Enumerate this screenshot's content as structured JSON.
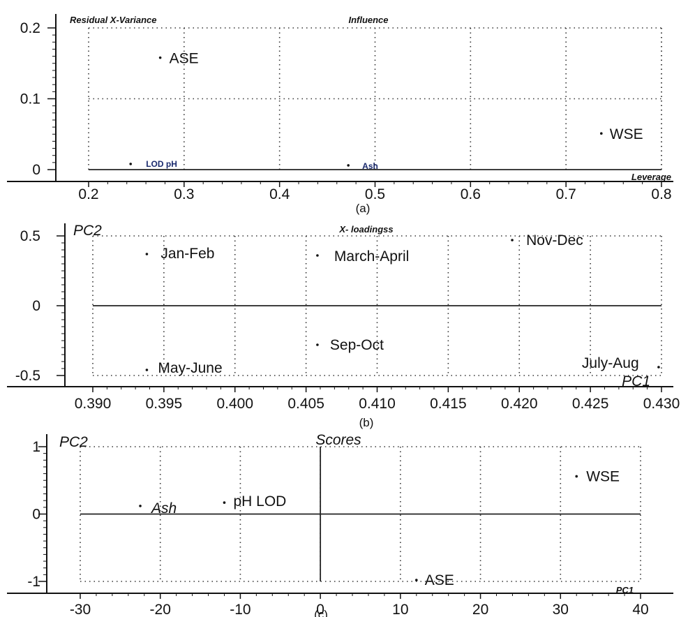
{
  "chart_data": [
    {
      "type": "scatter",
      "caption": "(a)",
      "title": "Influence",
      "ylabel": "Residual X-Variance",
      "xlabel": "Leverage",
      "xlim": [
        0.2,
        0.8
      ],
      "ylim": [
        0,
        0.2
      ],
      "xticks": [
        "0.2",
        "0.3",
        "0.4",
        "0.5",
        "0.6",
        "0.7",
        "0.8"
      ],
      "yticks": [
        "0",
        "0.1",
        "0.2"
      ],
      "grid": true,
      "points": [
        {
          "label": "ASE",
          "x": 0.275,
          "y": 0.158
        },
        {
          "label": "WSE",
          "x": 0.737,
          "y": 0.051
        },
        {
          "label": "LOD pH",
          "x": 0.244,
          "y": 0.008
        },
        {
          "label": "Ash",
          "x": 0.472,
          "y": 0.006
        }
      ]
    },
    {
      "type": "scatter",
      "caption": "(b)",
      "title": "X- loadingss",
      "ylabel": "PC2",
      "xlabel": "PC1",
      "xlim": [
        0.39,
        0.43
      ],
      "ylim": [
        -0.5,
        0.5
      ],
      "xticks": [
        "0.390",
        "0.395",
        "0.400",
        "0.405",
        "0.410",
        "0.415",
        "0.420",
        "0.425",
        "0.430"
      ],
      "yticks": [
        "-0.5",
        "0",
        "0.5"
      ],
      "grid": true,
      "points": [
        {
          "label": "Jan-Feb",
          "x": 0.3938,
          "y": 0.37
        },
        {
          "label": "March-April",
          "x": 0.4058,
          "y": 0.36
        },
        {
          "label": "Nov-Dec",
          "x": 0.4195,
          "y": 0.47
        },
        {
          "label": "Sep-Oct",
          "x": 0.4058,
          "y": -0.28
        },
        {
          "label": "May-June",
          "x": 0.3938,
          "y": -0.46
        },
        {
          "label": "July-Aug",
          "x": 0.4298,
          "y": -0.44
        }
      ]
    },
    {
      "type": "scatter",
      "caption": "(c)",
      "title": "Scores",
      "ylabel": "PC2",
      "xlabel": "PC1",
      "xlim": [
        -30,
        40
      ],
      "ylim": [
        -1,
        1
      ],
      "xticks": [
        "-30",
        "-20",
        "-10",
        "0",
        "10",
        "20",
        "30",
        "40"
      ],
      "yticks": [
        "-1",
        "0",
        "1"
      ],
      "grid": true,
      "points": [
        {
          "label": "WSE",
          "x": 32,
          "y": 0.56
        },
        {
          "label": "pH LOD",
          "x": -12,
          "y": 0.17
        },
        {
          "label": "Ash",
          "x": -22.5,
          "y": 0.12
        },
        {
          "label": "ASE",
          "x": 12,
          "y": -0.98
        }
      ]
    }
  ]
}
